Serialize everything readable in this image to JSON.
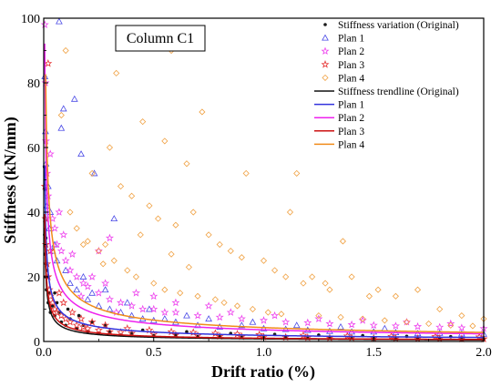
{
  "chart_data": {
    "type": "scatter",
    "title": "",
    "panel_label": "Column C1",
    "xlabel": "Drift ratio (%)",
    "ylabel": "Stiffness (kN/mm)",
    "xlim": [
      0,
      2.0
    ],
    "ylim": [
      0,
      100
    ],
    "xticks": [
      0.0,
      0.5,
      1.0,
      1.5,
      2.0
    ],
    "xtick_labels": [
      "0.0",
      "0.5",
      "1.0",
      "1.5",
      "2.0"
    ],
    "yticks": [
      0,
      20,
      40,
      60,
      80,
      100
    ],
    "ytick_labels": [
      "0",
      "20",
      "40",
      "60",
      "80",
      "100"
    ],
    "grid": false,
    "legend_position": "top-right",
    "scatter_series": [
      {
        "name": "Stiffness variation (Original)",
        "marker": "dot",
        "color": "#1a1a1a",
        "points": [
          [
            0.003,
            54
          ],
          [
            0.004,
            33
          ],
          [
            0.005,
            47
          ],
          [
            0.006,
            27
          ],
          [
            0.008,
            20
          ],
          [
            0.01,
            24
          ],
          [
            0.012,
            16
          ],
          [
            0.015,
            22
          ],
          [
            0.02,
            12
          ],
          [
            0.025,
            15
          ],
          [
            0.03,
            9
          ],
          [
            0.04,
            11
          ],
          [
            0.05,
            8
          ],
          [
            0.06,
            12
          ],
          [
            0.08,
            6
          ],
          [
            0.1,
            5
          ],
          [
            0.12,
            7
          ],
          [
            0.15,
            4
          ],
          [
            0.18,
            5
          ],
          [
            0.2,
            3
          ],
          [
            0.25,
            2.5
          ],
          [
            0.3,
            3
          ],
          [
            0.35,
            2
          ],
          [
            0.4,
            2.5
          ],
          [
            0.5,
            1.8
          ],
          [
            0.6,
            2
          ],
          [
            0.7,
            1.5
          ],
          [
            0.8,
            1.5
          ],
          [
            0.9,
            1.3
          ],
          [
            1.0,
            1.2
          ],
          [
            1.1,
            1.4
          ],
          [
            1.2,
            1.0
          ],
          [
            1.3,
            1.2
          ],
          [
            1.4,
            0.9
          ],
          [
            1.5,
            1.0
          ],
          [
            1.6,
            0.8
          ],
          [
            1.7,
            0.9
          ],
          [
            1.8,
            0.8
          ],
          [
            1.9,
            0.7
          ],
          [
            2.0,
            0.8
          ],
          [
            0.01,
            32
          ],
          [
            0.02,
            20
          ],
          [
            0.05,
            15
          ],
          [
            0.07,
            9
          ],
          [
            0.11,
            10
          ],
          [
            0.16,
            8
          ],
          [
            0.22,
            6
          ],
          [
            0.28,
            5
          ],
          [
            0.45,
            3.5
          ],
          [
            0.65,
            3
          ],
          [
            0.85,
            2.5
          ],
          [
            1.05,
            2.2
          ],
          [
            1.25,
            2
          ],
          [
            1.45,
            1.8
          ],
          [
            1.65,
            1.6
          ],
          [
            1.85,
            1.5
          ]
        ]
      },
      {
        "name": "Plan 1",
        "marker": "triangle",
        "color": "#4a4ae6",
        "points": [
          [
            0.005,
            82
          ],
          [
            0.008,
            65
          ],
          [
            0.01,
            55
          ],
          [
            0.015,
            42
          ],
          [
            0.02,
            48
          ],
          [
            0.025,
            35
          ],
          [
            0.03,
            40
          ],
          [
            0.04,
            28
          ],
          [
            0.05,
            30
          ],
          [
            0.06,
            25
          ],
          [
            0.07,
            99
          ],
          [
            0.08,
            66
          ],
          [
            0.09,
            72
          ],
          [
            0.1,
            22
          ],
          [
            0.12,
            18
          ],
          [
            0.14,
            75
          ],
          [
            0.15,
            16
          ],
          [
            0.17,
            58
          ],
          [
            0.2,
            13
          ],
          [
            0.23,
            52
          ],
          [
            0.25,
            11
          ],
          [
            0.28,
            16
          ],
          [
            0.3,
            10
          ],
          [
            0.32,
            38
          ],
          [
            0.35,
            9
          ],
          [
            0.4,
            8
          ],
          [
            0.45,
            7
          ],
          [
            0.5,
            6.5
          ],
          [
            0.55,
            7
          ],
          [
            0.6,
            6
          ],
          [
            0.7,
            5
          ],
          [
            0.8,
            4.5
          ],
          [
            0.9,
            5
          ],
          [
            1.0,
            4
          ],
          [
            1.1,
            3.8
          ],
          [
            1.2,
            3.5
          ],
          [
            1.3,
            3.2
          ],
          [
            1.4,
            3
          ],
          [
            1.5,
            3
          ],
          [
            1.6,
            2.8
          ],
          [
            1.7,
            2.5
          ],
          [
            1.8,
            2.6
          ],
          [
            1.9,
            2.4
          ],
          [
            2.0,
            2.3
          ],
          [
            0.18,
            20
          ],
          [
            0.22,
            15
          ],
          [
            0.38,
            12
          ],
          [
            0.48,
            10
          ],
          [
            0.65,
            8
          ],
          [
            0.75,
            7
          ],
          [
            0.95,
            6
          ],
          [
            1.15,
            5
          ],
          [
            1.35,
            4.5
          ],
          [
            1.55,
            4
          ]
        ]
      },
      {
        "name": "Plan 2",
        "marker": "star",
        "color": "#ee44ee",
        "points": [
          [
            0.005,
            98
          ],
          [
            0.008,
            80
          ],
          [
            0.01,
            62
          ],
          [
            0.015,
            52
          ],
          [
            0.02,
            45
          ],
          [
            0.03,
            58
          ],
          [
            0.04,
            38
          ],
          [
            0.05,
            35
          ],
          [
            0.06,
            30
          ],
          [
            0.08,
            28
          ],
          [
            0.1,
            25
          ],
          [
            0.12,
            22
          ],
          [
            0.15,
            20
          ],
          [
            0.18,
            18
          ],
          [
            0.2,
            17
          ],
          [
            0.25,
            15
          ],
          [
            0.3,
            13
          ],
          [
            0.35,
            12
          ],
          [
            0.4,
            11
          ],
          [
            0.45,
            10
          ],
          [
            0.5,
            10
          ],
          [
            0.55,
            9
          ],
          [
            0.6,
            9
          ],
          [
            0.7,
            8
          ],
          [
            0.8,
            7.5
          ],
          [
            0.9,
            7
          ],
          [
            1.0,
            6.5
          ],
          [
            1.1,
            6
          ],
          [
            1.2,
            5.8
          ],
          [
            1.3,
            5.5
          ],
          [
            1.4,
            5.2
          ],
          [
            1.5,
            5
          ],
          [
            1.6,
            4.8
          ],
          [
            1.7,
            4.6
          ],
          [
            1.8,
            4.4
          ],
          [
            1.9,
            4.2
          ],
          [
            2.0,
            4
          ],
          [
            0.07,
            40
          ],
          [
            0.09,
            33
          ],
          [
            0.13,
            27
          ],
          [
            0.17,
            14
          ],
          [
            0.22,
            20
          ],
          [
            0.28,
            18
          ],
          [
            0.33,
            9
          ],
          [
            0.42,
            15
          ],
          [
            0.5,
            14
          ],
          [
            0.6,
            12
          ],
          [
            0.75,
            11
          ],
          [
            0.85,
            9
          ],
          [
            1.05,
            8
          ],
          [
            1.25,
            7
          ],
          [
            1.45,
            6.5
          ],
          [
            1.65,
            6
          ],
          [
            1.85,
            5.5
          ],
          [
            0.3,
            32
          ],
          [
            0.25,
            28
          ]
        ]
      },
      {
        "name": "Plan 3",
        "marker": "star",
        "color": "#e63333",
        "points": [
          [
            0.005,
            48
          ],
          [
            0.008,
            38
          ],
          [
            0.01,
            30
          ],
          [
            0.015,
            24
          ],
          [
            0.02,
            20
          ],
          [
            0.025,
            16
          ],
          [
            0.03,
            14
          ],
          [
            0.04,
            12
          ],
          [
            0.05,
            10
          ],
          [
            0.06,
            9
          ],
          [
            0.08,
            8
          ],
          [
            0.1,
            7
          ],
          [
            0.12,
            6
          ],
          [
            0.15,
            5
          ],
          [
            0.18,
            4.5
          ],
          [
            0.2,
            4
          ],
          [
            0.25,
            3.5
          ],
          [
            0.3,
            3
          ],
          [
            0.35,
            2.8
          ],
          [
            0.4,
            2.5
          ],
          [
            0.5,
            2.2
          ],
          [
            0.6,
            2
          ],
          [
            0.7,
            1.8
          ],
          [
            0.8,
            1.6
          ],
          [
            0.9,
            1.5
          ],
          [
            1.0,
            1.4
          ],
          [
            1.1,
            1.3
          ],
          [
            1.2,
            1.2
          ],
          [
            1.3,
            1.1
          ],
          [
            1.4,
            1.1
          ],
          [
            1.5,
            1
          ],
          [
            1.6,
            1
          ],
          [
            1.7,
            0.9
          ],
          [
            1.8,
            0.9
          ],
          [
            1.9,
            0.8
          ],
          [
            2.0,
            0.8
          ],
          [
            0.02,
            86
          ],
          [
            0.03,
            28
          ],
          [
            0.07,
            15
          ],
          [
            0.09,
            12
          ],
          [
            0.13,
            9
          ],
          [
            0.17,
            7
          ],
          [
            0.22,
            6
          ],
          [
            0.28,
            5
          ],
          [
            0.38,
            4
          ],
          [
            0.48,
            3.5
          ],
          [
            0.58,
            3
          ],
          [
            0.68,
            2.8
          ],
          [
            0.78,
            2.5
          ],
          [
            0.88,
            2.3
          ],
          [
            0.98,
            2.1
          ],
          [
            1.18,
            1.9
          ],
          [
            1.38,
            1.7
          ],
          [
            1.58,
            1.6
          ],
          [
            1.78,
            1.5
          ],
          [
            1.98,
            1.4
          ]
        ]
      },
      {
        "name": "Plan 4",
        "marker": "diamond",
        "color": "#f0a040",
        "points": [
          [
            0.1,
            90
          ],
          [
            0.33,
            83
          ],
          [
            0.58,
            90
          ],
          [
            0.22,
            52
          ],
          [
            0.3,
            60
          ],
          [
            0.45,
            68
          ],
          [
            0.55,
            62
          ],
          [
            0.65,
            55
          ],
          [
            0.72,
            71
          ],
          [
            0.92,
            52
          ],
          [
            1.15,
            52
          ],
          [
            1.12,
            40
          ],
          [
            0.35,
            48
          ],
          [
            0.4,
            45
          ],
          [
            0.48,
            42
          ],
          [
            0.52,
            38
          ],
          [
            0.6,
            36
          ],
          [
            0.68,
            40
          ],
          [
            0.75,
            33
          ],
          [
            0.8,
            30
          ],
          [
            0.85,
            28
          ],
          [
            0.9,
            26
          ],
          [
            1.0,
            25
          ],
          [
            1.05,
            22
          ],
          [
            1.1,
            20
          ],
          [
            1.18,
            18
          ],
          [
            1.22,
            20
          ],
          [
            1.28,
            18
          ],
          [
            1.3,
            16
          ],
          [
            1.36,
            31
          ],
          [
            1.4,
            20
          ],
          [
            1.48,
            14
          ],
          [
            1.52,
            16
          ],
          [
            1.6,
            14
          ],
          [
            1.7,
            16
          ],
          [
            1.8,
            10
          ],
          [
            1.9,
            8
          ],
          [
            2.0,
            7
          ],
          [
            0.12,
            40
          ],
          [
            0.15,
            35
          ],
          [
            0.18,
            30
          ],
          [
            0.25,
            28
          ],
          [
            0.28,
            30
          ],
          [
            0.32,
            25
          ],
          [
            0.38,
            22
          ],
          [
            0.42,
            20
          ],
          [
            0.5,
            18
          ],
          [
            0.55,
            16
          ],
          [
            0.62,
            15
          ],
          [
            0.7,
            14
          ],
          [
            0.78,
            13
          ],
          [
            0.82,
            12
          ],
          [
            0.88,
            11
          ],
          [
            0.95,
            10
          ],
          [
            1.02,
            9
          ],
          [
            1.08,
            8.5
          ],
          [
            1.25,
            8
          ],
          [
            1.35,
            7.5
          ],
          [
            1.45,
            7
          ],
          [
            1.55,
            6.5
          ],
          [
            1.65,
            6
          ],
          [
            1.75,
            5.5
          ],
          [
            1.85,
            5
          ],
          [
            1.95,
            4.8
          ],
          [
            0.08,
            70
          ],
          [
            0.2,
            31
          ],
          [
            0.27,
            24
          ],
          [
            0.44,
            33
          ],
          [
            0.58,
            27
          ],
          [
            0.66,
            23
          ]
        ]
      }
    ],
    "trend_series": [
      {
        "name": "Stiffness trendline (Original)",
        "color": "#111111",
        "coef": 0.8,
        "exp": 0.7
      },
      {
        "name": "Plan 1",
        "color": "#3333dd",
        "coef": 1.9,
        "exp": 0.62
      },
      {
        "name": "Plan 2",
        "color": "#ee22ee",
        "coef": 3.6,
        "exp": 0.6
      },
      {
        "name": "Plan 3",
        "color": "#cc1111",
        "coef": 1.0,
        "exp": 0.68
      },
      {
        "name": "Plan 4",
        "color": "#f08c1a",
        "coef": 4.3,
        "exp": 0.62
      }
    ]
  }
}
